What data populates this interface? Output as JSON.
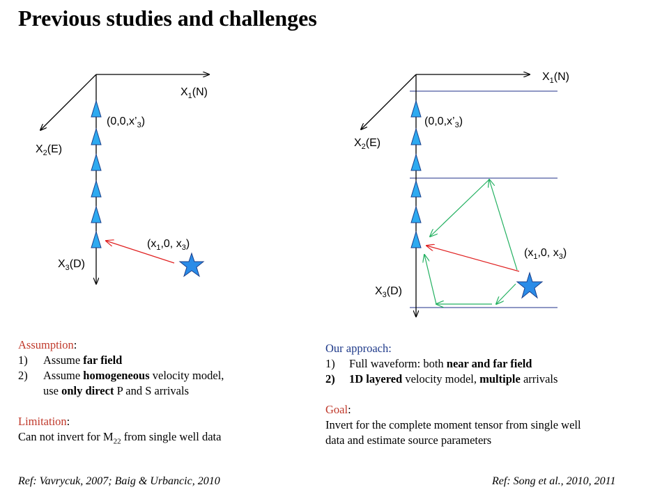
{
  "slide": {
    "title": "Previous studies and challenges"
  },
  "diagram_left": {
    "axis_x1": "X",
    "axis_x1_sub": "1",
    "axis_x1_suffix": "(N)",
    "axis_x2": "X",
    "axis_x2_sub": "2",
    "axis_x2_suffix": "(E)",
    "axis_x3": "X",
    "axis_x3_sub": "3",
    "axis_x3_suffix": "(D)",
    "receiver_label": "(0,0,x’",
    "receiver_label_sub": "3",
    "receiver_label_end": ")",
    "source_label": "(x",
    "source_label_sub1": "1",
    "source_label_mid": ",0, x",
    "source_label_sub2": "3",
    "source_label_end": ")"
  },
  "diagram_right": {
    "axis_x1": "X",
    "axis_x1_sub": "1",
    "axis_x1_suffix": "(N)",
    "axis_x2": "X",
    "axis_x2_sub": "2",
    "axis_x2_suffix": "(E)",
    "axis_x3": "X",
    "axis_x3_sub": "3",
    "axis_x3_suffix": "(D)",
    "receiver_label": "(0,0,x’",
    "receiver_label_sub": "3",
    "receiver_label_end": ")",
    "source_label": "(x",
    "source_label_sub1": "1",
    "source_label_mid": ",0, x",
    "source_label_sub2": "3",
    "source_label_end": ")"
  },
  "left_text": {
    "assumption_heading": "Assumption",
    "item1_num": "1)",
    "item1_pre": "Assume ",
    "item1_bold": "far field",
    "item2_num": "2)",
    "item2_pre": "Assume ",
    "item2_bold": "homogeneous",
    "item2_post": " velocity model,",
    "item2_line2_pre": "use ",
    "item2_line2_bold": "only direct",
    "item2_line2_post": " P and S arrivals",
    "limitation_heading": "Limitation",
    "limitation_pre": "Can not invert for M",
    "limitation_sub": "22",
    "limitation_post": " from single well data"
  },
  "right_text": {
    "approach_heading": "Our approach:",
    "item1_num": "1)",
    "item1_pre": "Full waveform: both ",
    "item1_bold": "near and far field",
    "item2_num": "2)",
    "item2_bold1": "1D layered",
    "item2_mid": " velocity model, ",
    "item2_bold2": "multiple",
    "item2_post": " arrivals",
    "goal_heading": "Goal",
    "goal_line1": "Invert for the complete moment tensor from single well",
    "goal_line2": "data and estimate source parameters"
  },
  "refs": {
    "left": "Ref: Vavrycuk, 2007; Baig & Urbancic, 2010",
    "right": "Ref: Song et al., 2010, 2011"
  },
  "colors": {
    "receiver": "#2eaaf0",
    "star": "#2a8ce8",
    "direct_ray": "#e02020",
    "multiple_ray": "#22b060",
    "layer": "#1f2f8a",
    "heading": "#c0392b"
  }
}
